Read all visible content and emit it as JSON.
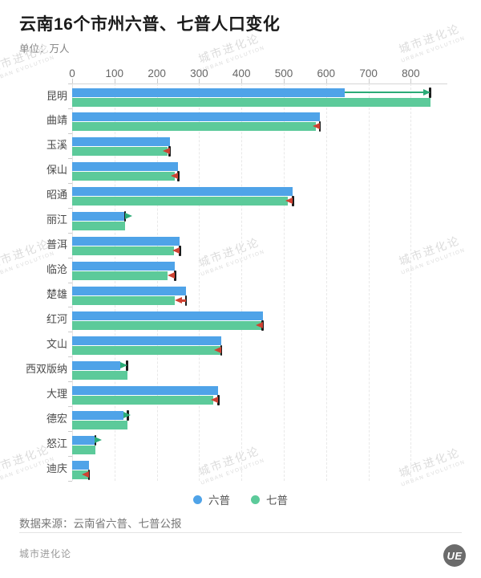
{
  "header": {
    "title": "云南16个市州六普、七普人口变化",
    "unit_label": "单位：万人"
  },
  "chart_data": {
    "type": "bar",
    "orientation": "horizontal",
    "unit": "万人",
    "title": "云南16个市州六普、七普人口变化",
    "categories": [
      "昆明",
      "曲靖",
      "玉溪",
      "保山",
      "昭通",
      "丽江",
      "普洱",
      "临沧",
      "楚雄",
      "红河",
      "文山",
      "西双版纳",
      "大理",
      "德宏",
      "怒江",
      "迪庆"
    ],
    "series": [
      {
        "name": "六普",
        "color": "#4fa3e8",
        "values": [
          643.2,
          585.5,
          230.4,
          250.6,
          521.3,
          124.5,
          254.3,
          243.0,
          268.4,
          450.1,
          351.8,
          113.4,
          345.6,
          121.1,
          53.4,
          40.0
        ]
      },
      {
        "name": "七普",
        "color": "#5cca9a",
        "values": [
          846.0,
          576.6,
          225.0,
          243.1,
          509.2,
          125.3,
          240.5,
          225.7,
          241.7,
          447.8,
          350.3,
          130.1,
          333.8,
          131.6,
          55.2,
          38.7
        ]
      }
    ],
    "xticks": [
      0,
      100,
      200,
      300,
      400,
      500,
      600,
      700,
      800
    ],
    "xlim": [
      0,
      886
    ],
    "grid": true,
    "legend_position": "bottom",
    "change_markers": {
      "increase_color": "#2bab77",
      "decrease_color": "#cf4232",
      "tick_color": "#1c1c1c"
    }
  },
  "legend": {
    "items": [
      {
        "label": "六普",
        "color": "#4fa3e8"
      },
      {
        "label": "七普",
        "color": "#5cca9a"
      }
    ]
  },
  "footer": {
    "source": "数据来源：云南省六普、七普公报",
    "brand": "城市进化论",
    "logo_text": "UE"
  },
  "watermark": {
    "line1": "城市进化论",
    "line2": "URBAN EVOLUTION"
  }
}
